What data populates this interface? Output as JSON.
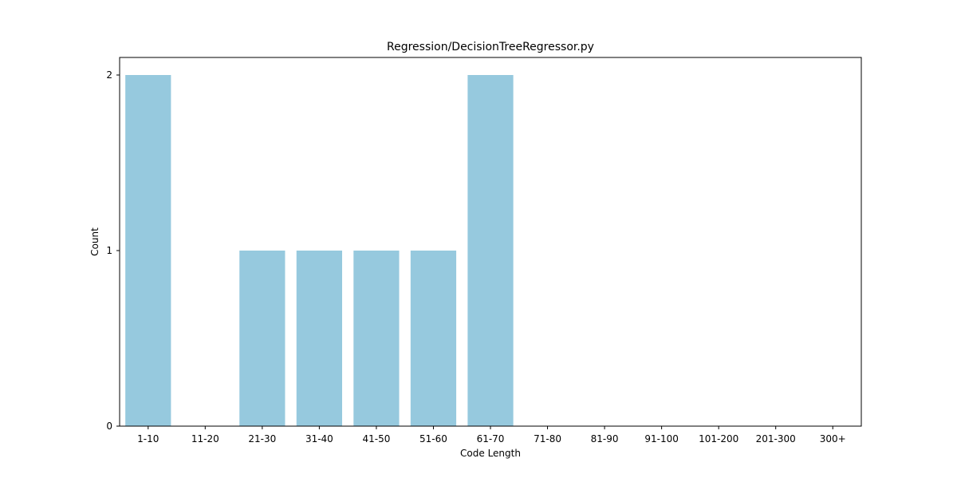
{
  "chart_data": {
    "type": "bar",
    "title": "Regression/DecisionTreeRegressor.py",
    "xlabel": "Code Length",
    "ylabel": "Count",
    "categories": [
      "1-10",
      "11-20",
      "21-30",
      "31-40",
      "41-50",
      "51-60",
      "61-70",
      "71-80",
      "81-90",
      "91-100",
      "101-200",
      "201-300",
      "300+"
    ],
    "values": [
      2,
      0,
      1,
      1,
      1,
      1,
      2,
      0,
      0,
      0,
      0,
      0,
      0
    ],
    "ylim": [
      0,
      2.1
    ],
    "yticks": [
      0,
      1,
      2
    ],
    "grid": false,
    "bar_color": "#96c9de"
  }
}
